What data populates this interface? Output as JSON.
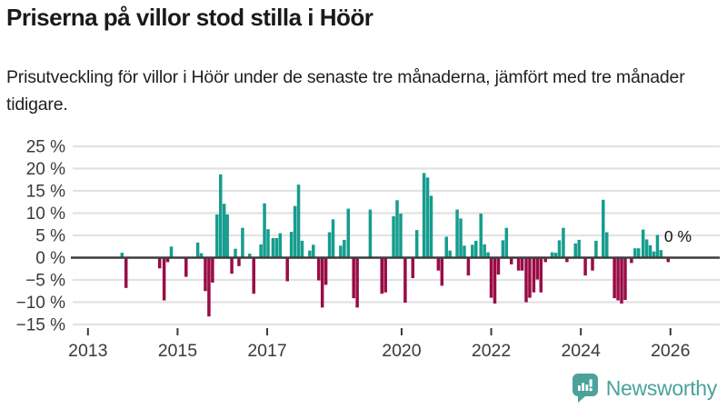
{
  "header": {
    "title": "Priserna på villor stod stilla i Höör",
    "subtitle": "Prisutveckling för villor i Höör under de senaste tre månaderna, jämfört med tre månader tidigare."
  },
  "chart_data": {
    "type": "bar",
    "title": "Priserna på villor stod stilla i Höör",
    "xlabel": "",
    "ylabel": "",
    "y_tick_suffix": " %",
    "y_ticks": [
      25,
      20,
      15,
      10,
      5,
      0,
      -5,
      -10,
      -15
    ],
    "x_ticks": [
      2013,
      2015,
      2017,
      2020,
      2022,
      2024,
      2026
    ],
    "x_range": [
      2012.7,
      2027.1
    ],
    "y_range": [
      -15,
      25
    ],
    "grid": true,
    "legend": "none",
    "annotation": {
      "text": "0 %",
      "x": 2025.86,
      "v": 3.6
    },
    "colors": {
      "positive": "#169d8e",
      "negative": "#9a0c46",
      "axis": "#3c3c3c",
      "grid": "#e2e2e2",
      "tick_label": "#3a3a3a",
      "annotation_text": "#111111"
    },
    "points": [
      [
        2013.76,
        1.1
      ],
      [
        2013.85,
        -6.8
      ],
      [
        2014.6,
        -2.4
      ],
      [
        2014.7,
        -9.6
      ],
      [
        2014.78,
        -1.0
      ],
      [
        2014.86,
        2.5
      ],
      [
        2015.19,
        -4.3
      ],
      [
        2015.45,
        3.4
      ],
      [
        2015.53,
        1.0
      ],
      [
        2015.62,
        -7.5
      ],
      [
        2015.7,
        -13.2
      ],
      [
        2015.78,
        -5.6
      ],
      [
        2015.88,
        9.7
      ],
      [
        2015.96,
        18.7
      ],
      [
        2016.04,
        12.1
      ],
      [
        2016.11,
        9.7
      ],
      [
        2016.21,
        -3.6
      ],
      [
        2016.29,
        2.0
      ],
      [
        2016.37,
        -1.9
      ],
      [
        2016.45,
        6.7
      ],
      [
        2016.61,
        0.9
      ],
      [
        2016.7,
        -8.1
      ],
      [
        2016.86,
        3.0
      ],
      [
        2016.94,
        12.2
      ],
      [
        2017.02,
        6.4
      ],
      [
        2017.13,
        4.4
      ],
      [
        2017.21,
        4.4
      ],
      [
        2017.29,
        5.5
      ],
      [
        2017.45,
        -5.3
      ],
      [
        2017.54,
        5.8
      ],
      [
        2017.62,
        11.6
      ],
      [
        2017.7,
        16.4
      ],
      [
        2017.78,
        3.8
      ],
      [
        2017.95,
        1.6
      ],
      [
        2018.03,
        2.9
      ],
      [
        2018.15,
        -5.1
      ],
      [
        2018.23,
        -11.2
      ],
      [
        2018.31,
        -6.1
      ],
      [
        2018.39,
        5.7
      ],
      [
        2018.47,
        8.6
      ],
      [
        2018.64,
        2.7
      ],
      [
        2018.72,
        4.0
      ],
      [
        2018.81,
        11.0
      ],
      [
        2018.93,
        -9.1
      ],
      [
        2019.01,
        -11.2
      ],
      [
        2019.3,
        10.8
      ],
      [
        2019.56,
        -8.1
      ],
      [
        2019.64,
        -7.8
      ],
      [
        2019.82,
        9.3
      ],
      [
        2019.9,
        12.9
      ],
      [
        2019.98,
        9.9
      ],
      [
        2020.08,
        -10.1
      ],
      [
        2020.25,
        -4.6
      ],
      [
        2020.34,
        6.2
      ],
      [
        2020.5,
        19.0
      ],
      [
        2020.58,
        18.0
      ],
      [
        2020.66,
        13.9
      ],
      [
        2020.82,
        -2.9
      ],
      [
        2020.9,
        -6.3
      ],
      [
        2021.0,
        4.7
      ],
      [
        2021.08,
        1.6
      ],
      [
        2021.24,
        10.8
      ],
      [
        2021.32,
        8.8
      ],
      [
        2021.4,
        2.7
      ],
      [
        2021.49,
        -4.0
      ],
      [
        2021.58,
        2.9
      ],
      [
        2021.66,
        3.8
      ],
      [
        2021.77,
        9.9
      ],
      [
        2021.85,
        3.0
      ],
      [
        2021.93,
        1.2
      ],
      [
        2022.0,
        -9.0
      ],
      [
        2022.08,
        -10.3
      ],
      [
        2022.16,
        -3.8
      ],
      [
        2022.26,
        3.9
      ],
      [
        2022.34,
        6.7
      ],
      [
        2022.45,
        -1.5
      ],
      [
        2022.61,
        -2.9
      ],
      [
        2022.69,
        -2.9
      ],
      [
        2022.78,
        -10.0
      ],
      [
        2022.86,
        -9.0
      ],
      [
        2022.95,
        -7.8
      ],
      [
        2023.03,
        -4.9
      ],
      [
        2023.11,
        -7.8
      ],
      [
        2023.21,
        -1.0
      ],
      [
        2023.36,
        1.2
      ],
      [
        2023.44,
        1.1
      ],
      [
        2023.52,
        3.9
      ],
      [
        2023.61,
        6.7
      ],
      [
        2023.69,
        -1.0
      ],
      [
        2023.88,
        3.2
      ],
      [
        2023.96,
        4.0
      ],
      [
        2024.1,
        -4.0
      ],
      [
        2024.26,
        -2.9
      ],
      [
        2024.34,
        3.8
      ],
      [
        2024.5,
        13.0
      ],
      [
        2024.58,
        5.7
      ],
      [
        2024.75,
        -9.1
      ],
      [
        2024.83,
        -9.6
      ],
      [
        2024.91,
        -10.3
      ],
      [
        2024.99,
        -9.5
      ],
      [
        2025.13,
        -1.2
      ],
      [
        2025.21,
        2.1
      ],
      [
        2025.29,
        2.1
      ],
      [
        2025.39,
        6.3
      ],
      [
        2025.47,
        4.1
      ],
      [
        2025.55,
        2.8
      ],
      [
        2025.63,
        1.4
      ],
      [
        2025.71,
        5.1
      ],
      [
        2025.79,
        1.7
      ],
      [
        2025.95,
        -1.0
      ]
    ]
  },
  "footer": {
    "brand": "Newsworthy",
    "brand_color": "#4ba29b"
  }
}
